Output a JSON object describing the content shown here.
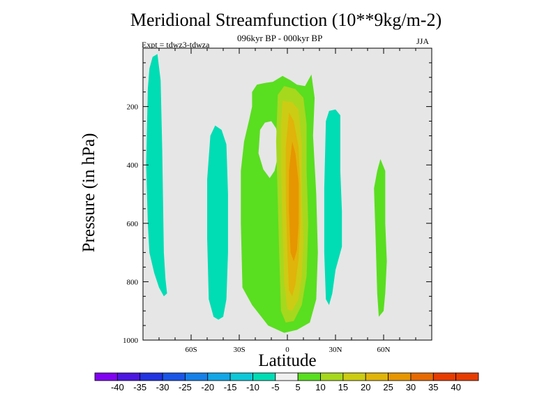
{
  "chart_data": {
    "type": "contour",
    "title": "Meridional Streamfunction (10**9kg/m-2)",
    "subtitle": "096kyr BP - 000kyr BP",
    "experiment": "Expt = tdwz3-tdwza",
    "season": "JJA",
    "xlabel": "Latitude",
    "ylabel": "Pressure (in hPa)",
    "xlim": [
      -90,
      90
    ],
    "ylim": [
      1000,
      0
    ],
    "x_ticks": [
      {
        "value": -60,
        "label": "60S"
      },
      {
        "value": -30,
        "label": "30S"
      },
      {
        "value": 0,
        "label": "0"
      },
      {
        "value": 30,
        "label": "30N"
      },
      {
        "value": 60,
        "label": "60N"
      }
    ],
    "y_ticks": [
      {
        "value": 200,
        "label": "200"
      },
      {
        "value": 400,
        "label": "400"
      },
      {
        "value": 600,
        "label": "600"
      },
      {
        "value": 800,
        "label": "800"
      },
      {
        "value": 1000,
        "label": "1000"
      }
    ],
    "background_color": "#e6e6e6",
    "colorbar": {
      "labels": [
        "-40",
        "-35",
        "-30",
        "-25",
        "-20",
        "-15",
        "-10",
        "-5",
        "5",
        "10",
        "15",
        "20",
        "25",
        "30",
        "35",
        "40"
      ],
      "colors": [
        "#8000f0",
        "#4b16e0",
        "#2233e0",
        "#1a55e6",
        "#1580e8",
        "#12a6e6",
        "#0ec8d8",
        "#00dcb4",
        "#f0f0f0",
        "#5ade20",
        "#a6d81e",
        "#cccc14",
        "#e0b40a",
        "#e69600",
        "#e66a00",
        "#e63c00"
      ]
    },
    "regions": [
      {
        "level": "-10 to -5",
        "color": "#00dcb4",
        "points": [
          [
            -87,
            140
          ],
          [
            -86,
            70
          ],
          [
            -84,
            30
          ],
          [
            -81,
            20
          ],
          [
            -79,
            110
          ],
          [
            -78,
            350
          ],
          [
            -77,
            700
          ],
          [
            -76,
            790
          ],
          [
            -75,
            840
          ],
          [
            -77,
            850
          ],
          [
            -80,
            820
          ],
          [
            -83,
            770
          ],
          [
            -86,
            700
          ],
          [
            -87,
            600
          ],
          [
            -88,
            400
          ]
        ]
      },
      {
        "level": "-10 to -5",
        "color": "#00dcb4",
        "points": [
          [
            -48,
            300
          ],
          [
            -45,
            265
          ],
          [
            -41,
            280
          ],
          [
            -38,
            330
          ],
          [
            -37,
            500
          ],
          [
            -37,
            700
          ],
          [
            -38,
            860
          ],
          [
            -40,
            920
          ],
          [
            -43,
            930
          ],
          [
            -46,
            920
          ],
          [
            -49,
            860
          ],
          [
            -50,
            650
          ],
          [
            -50,
            450
          ]
        ]
      },
      {
        "level": "-10 to -5",
        "color": "#00dcb4",
        "points": [
          [
            24,
            250
          ],
          [
            26,
            215
          ],
          [
            30,
            210
          ],
          [
            33,
            230
          ],
          [
            33,
            420
          ],
          [
            34,
            560
          ],
          [
            34,
            680
          ],
          [
            32,
            720
          ],
          [
            30,
            760
          ],
          [
            28,
            840
          ],
          [
            26,
            880
          ],
          [
            24,
            860
          ],
          [
            23,
            700
          ],
          [
            23,
            480
          ]
        ]
      },
      {
        "level": "5 to 10",
        "color": "#5ade20",
        "points": [
          [
            -22,
            200
          ],
          [
            -22,
            150
          ],
          [
            -19,
            125
          ],
          [
            -15,
            120
          ],
          [
            -9,
            115
          ],
          [
            -3,
            95
          ],
          [
            2,
            110
          ],
          [
            6,
            125
          ],
          [
            11,
            130
          ],
          [
            15,
            90
          ],
          [
            17,
            170
          ],
          [
            16,
            300
          ],
          [
            18,
            500
          ],
          [
            19,
            700
          ],
          [
            18,
            860
          ],
          [
            14,
            940
          ],
          [
            6,
            965
          ],
          [
            -2,
            975
          ],
          [
            -12,
            950
          ],
          [
            -22,
            880
          ],
          [
            -28,
            820
          ],
          [
            -29,
            600
          ],
          [
            -29,
            420
          ],
          [
            -27,
            320
          ],
          [
            -24,
            250
          ]
        ]
      },
      {
        "level": "5 to 10",
        "color": "#5ade20",
        "points": [
          [
            54,
            480
          ],
          [
            56,
            420
          ],
          [
            58,
            380
          ],
          [
            61,
            420
          ],
          [
            61,
            600
          ],
          [
            62,
            730
          ],
          [
            61,
            840
          ],
          [
            60,
            900
          ],
          [
            57,
            920
          ],
          [
            56,
            840
          ],
          [
            55,
            650
          ]
        ]
      },
      {
        "level": "-5 to 5",
        "color": "#e6e6e6",
        "points": [
          [
            -17,
            280
          ],
          [
            -14,
            255
          ],
          [
            -10,
            250
          ],
          [
            -7,
            275
          ],
          [
            -5,
            350
          ],
          [
            -8,
            420
          ],
          [
            -11,
            445
          ],
          [
            -15,
            415
          ],
          [
            -18,
            360
          ]
        ]
      },
      {
        "level": "10 to 15",
        "color": "#a6d81e",
        "points": [
          [
            -6,
            160
          ],
          [
            -2,
            130
          ],
          [
            5,
            140
          ],
          [
            10,
            170
          ],
          [
            12,
            260
          ],
          [
            12,
            420
          ],
          [
            13,
            600
          ],
          [
            12,
            780
          ],
          [
            9,
            880
          ],
          [
            4,
            935
          ],
          [
            -1,
            940
          ],
          [
            -4,
            900
          ],
          [
            -5,
            720
          ],
          [
            -6,
            520
          ],
          [
            -7,
            320
          ]
        ]
      },
      {
        "level": "15 to 20",
        "color": "#cccc14",
        "points": [
          [
            -3,
            180
          ],
          [
            3,
            185
          ],
          [
            7,
            210
          ],
          [
            9,
            330
          ],
          [
            9,
            500
          ],
          [
            10,
            660
          ],
          [
            9,
            780
          ],
          [
            7,
            860
          ],
          [
            3,
            900
          ],
          [
            0,
            895
          ],
          [
            -2,
            800
          ],
          [
            -3,
            620
          ],
          [
            -4,
            420
          ],
          [
            -4,
            260
          ]
        ]
      },
      {
        "level": "20 to 25",
        "color": "#e0b40a",
        "points": [
          [
            1,
            220
          ],
          [
            4,
            250
          ],
          [
            7,
            340
          ],
          [
            8,
            470
          ],
          [
            8,
            600
          ],
          [
            7,
            720
          ],
          [
            5,
            810
          ],
          [
            3,
            850
          ],
          [
            1,
            830
          ],
          [
            0,
            700
          ],
          [
            -1,
            520
          ],
          [
            -1,
            340
          ]
        ]
      },
      {
        "level": "25 to 30",
        "color": "#e69600",
        "points": [
          [
            3,
            320
          ],
          [
            5,
            360
          ],
          [
            7,
            460
          ],
          [
            7,
            600
          ],
          [
            6,
            690
          ],
          [
            4,
            730
          ],
          [
            2,
            700
          ],
          [
            1,
            560
          ],
          [
            1,
            420
          ]
        ]
      }
    ]
  }
}
